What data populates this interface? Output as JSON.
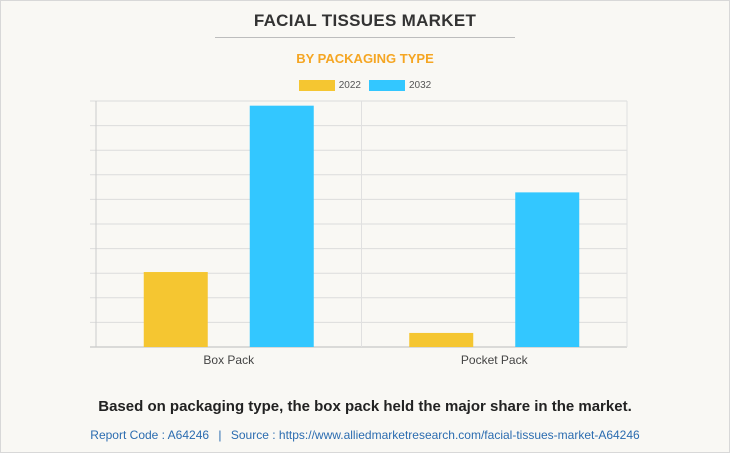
{
  "title": "FACIAL TISSUES MARKET",
  "subtitle": "BY PACKAGING TYPE",
  "colors": {
    "series_2022": "#f5c631",
    "series_2032": "#33c7ff",
    "subtitle": "#f5a623",
    "source": "#2b6cb0"
  },
  "chart_data": {
    "type": "bar",
    "title": "FACIAL TISSUES MARKET",
    "subtitle": "BY PACKAGING TYPE",
    "categories": [
      "Box Pack",
      "Pocket Pack"
    ],
    "series": [
      {
        "name": "2022",
        "values": [
          3.2,
          0.6
        ]
      },
      {
        "name": "2032",
        "values": [
          10.3,
          6.6
        ]
      }
    ],
    "ylim": [
      0,
      10.5
    ],
    "grid": true,
    "legend": "top-center",
    "xlabel": "",
    "ylabel": ""
  },
  "caption": "Based on packaging type, the box pack held the major share in the market.",
  "source": {
    "code_label": "Report Code : A64246",
    "separator": "|",
    "source_label": "Source : https://www.alliedmarketresearch.com/facial-tissues-market-A64246"
  }
}
